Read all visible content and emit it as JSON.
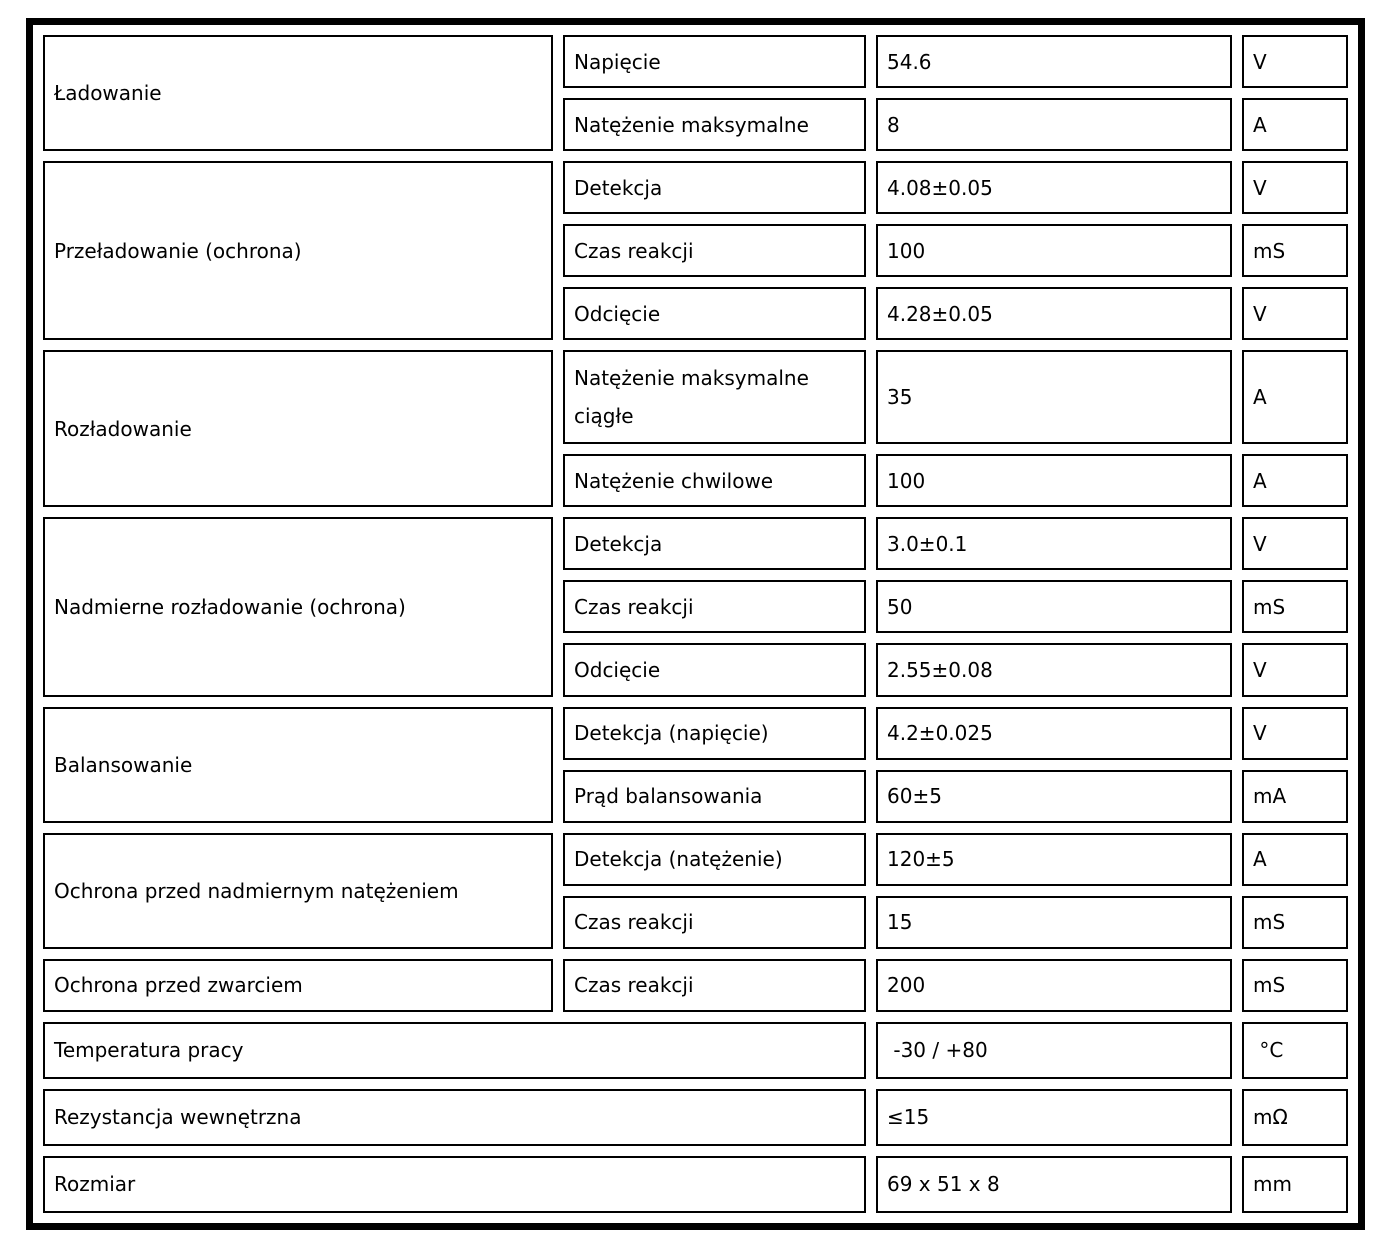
{
  "page": {
    "background": "#ffffff",
    "border_color": "#000000",
    "text_color": "#000000"
  },
  "spec_table": {
    "groups": [
      {
        "label": "Ładowanie",
        "rows": [
          {
            "param": "Napięcie",
            "value": "54.6",
            "unit": "V"
          },
          {
            "param": "Natężenie maksymalne",
            "value": "8",
            "unit": "A"
          }
        ]
      },
      {
        "label": "Przeładowanie (ochrona)",
        "rows": [
          {
            "param": "Detekcja",
            "value": "4.08±0.05",
            "unit": "V"
          },
          {
            "param": "Czas reakcji",
            "value": "100",
            "unit": "mS"
          },
          {
            "param": "Odcięcie",
            "value": "4.28±0.05",
            "unit": "V"
          }
        ]
      },
      {
        "label": "Rozładowanie",
        "rows": [
          {
            "param": "Natężenie maksymalne ciągłe",
            "value": "35",
            "unit": "A"
          },
          {
            "param": "Natężenie chwilowe",
            "value": "100",
            "unit": "A"
          }
        ]
      },
      {
        "label": "Nadmierne rozładowanie (ochrona)",
        "rows": [
          {
            "param": "Detekcja",
            "value": "3.0±0.1",
            "unit": "V"
          },
          {
            "param": "Czas reakcji",
            "value": "50",
            "unit": "mS"
          },
          {
            "param": "Odcięcie",
            "value": "2.55±0.08",
            "unit": "V"
          }
        ]
      },
      {
        "label": "Balansowanie",
        "rows": [
          {
            "param": "Detekcja (napięcie)",
            "value": "4.2±0.025",
            "unit": "V"
          },
          {
            "param": "Prąd balansowania",
            "value": "60±5",
            "unit": "mA"
          }
        ]
      },
      {
        "label": "Ochrona przed nadmiernym natężeniem",
        "rows": [
          {
            "param": "Detekcja (natężenie)",
            "value": "120±5",
            "unit": "A"
          },
          {
            "param": "Czas reakcji",
            "value": "15",
            "unit": "mS"
          }
        ]
      },
      {
        "label": "Ochrona przed zwarciem",
        "rows": [
          {
            "param": "Czas reakcji",
            "value": "200",
            "unit": "mS"
          }
        ]
      }
    ],
    "bottom_rows": [
      {
        "label": "Temperatura pracy",
        "value": " -30 / +80",
        "unit": " °C"
      },
      {
        "label": "Rezystancja wewnętrzna",
        "value": "≤15",
        "unit": "mΩ"
      },
      {
        "label": "Rozmiar",
        "value": "69 x 51 x 8",
        "unit": "mm"
      }
    ]
  }
}
